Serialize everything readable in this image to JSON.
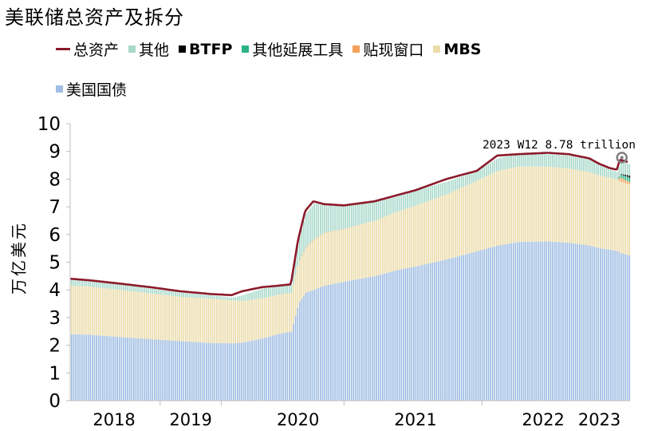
{
  "chart_data": {
    "type": "area",
    "title": "美联储总资产及拆分",
    "ylabel": "万亿美元",
    "xlabel": "",
    "ylim": [
      0,
      10
    ],
    "yticks": [
      0,
      1,
      2,
      3,
      4,
      5,
      6,
      7,
      8,
      9,
      10
    ],
    "xlim": [
      2017.82,
      2023.3
    ],
    "xtick_labels": [
      {
        "x": 2018.25,
        "label": "2018"
      },
      {
        "x": 2019.0,
        "label": "2019"
      },
      {
        "x": 2020.05,
        "label": "2020"
      },
      {
        "x": 2021.2,
        "label": "2021"
      },
      {
        "x": 2022.45,
        "label": "2022"
      },
      {
        "x": 2023.0,
        "label": "2023"
      }
    ],
    "annotation": {
      "x": 2023.22,
      "y": 8.78,
      "text": "2023 W12 8.78 trillion"
    },
    "legend": [
      {
        "name": "总资产",
        "type": "line",
        "color": "#8b1a2b"
      },
      {
        "name": "其他",
        "type": "swatch",
        "color": "#a9d9cb"
      },
      {
        "name": "BTFP",
        "type": "swatch",
        "color": "#000000"
      },
      {
        "name": "其他延展工具",
        "type": "swatch",
        "color": "#2bb387"
      },
      {
        "name": "贴现窗口",
        "type": "swatch",
        "color": "#f4a05a"
      },
      {
        "name": "MBS",
        "type": "swatch",
        "color": "#ebdcaa"
      },
      {
        "name": "美国国债",
        "type": "swatch",
        "color": "#9fbde3"
      }
    ],
    "x": [
      2017.83,
      2018.0,
      2018.3,
      2018.6,
      2018.9,
      2019.2,
      2019.4,
      2019.5,
      2019.7,
      2019.85,
      2019.98,
      2020.05,
      2020.12,
      2020.2,
      2020.3,
      2020.5,
      2020.8,
      2021.0,
      2021.2,
      2021.5,
      2021.8,
      2022.0,
      2022.2,
      2022.5,
      2022.7,
      2022.9,
      2023.0,
      2023.1,
      2023.17,
      2023.2,
      2023.25,
      2023.29
    ],
    "series": [
      {
        "name": "美国国债",
        "color": "#9fbde3",
        "values": [
          2.4,
          2.38,
          2.3,
          2.22,
          2.15,
          2.08,
          2.07,
          2.1,
          2.25,
          2.4,
          2.5,
          3.5,
          3.9,
          4.0,
          4.15,
          4.3,
          4.5,
          4.7,
          4.85,
          5.1,
          5.4,
          5.6,
          5.73,
          5.75,
          5.7,
          5.6,
          5.5,
          5.45,
          5.4,
          5.33,
          5.28,
          5.25
        ]
      },
      {
        "name": "MBS",
        "color": "#ebdcaa",
        "values": [
          1.75,
          1.74,
          1.7,
          1.65,
          1.6,
          1.6,
          1.55,
          1.5,
          1.45,
          1.42,
          1.4,
          1.5,
          1.6,
          1.8,
          1.9,
          1.9,
          2.0,
          2.1,
          2.2,
          2.35,
          2.55,
          2.7,
          2.72,
          2.7,
          2.68,
          2.65,
          2.62,
          2.6,
          2.58,
          2.58,
          2.57,
          2.56
        ]
      },
      {
        "name": "贴现窗口",
        "color": "#f4a05a",
        "values": [
          0,
          0,
          0,
          0,
          0,
          0,
          0,
          0,
          0,
          0,
          0,
          0.02,
          0.03,
          0.02,
          0.01,
          0.01,
          0,
          0,
          0,
          0,
          0,
          0,
          0,
          0,
          0,
          0,
          0,
          0,
          0,
          0.15,
          0.11,
          0.09
        ]
      },
      {
        "name": "其他延展工具",
        "color": "#2bb387",
        "values": [
          0,
          0,
          0,
          0,
          0,
          0,
          0,
          0,
          0,
          0,
          0,
          0,
          0,
          0,
          0,
          0,
          0,
          0,
          0,
          0,
          0,
          0,
          0,
          0,
          0,
          0,
          0,
          0,
          0,
          0.1,
          0.15,
          0.15
        ]
      },
      {
        "name": "BTFP",
        "color": "#000000",
        "values": [
          0,
          0,
          0,
          0,
          0,
          0,
          0,
          0,
          0,
          0,
          0,
          0,
          0,
          0,
          0,
          0,
          0,
          0,
          0,
          0,
          0,
          0,
          0,
          0,
          0,
          0,
          0,
          0,
          0,
          0.02,
          0.05,
          0.08
        ]
      },
      {
        "name": "其他",
        "color": "#a9d9cb",
        "values": [
          0.2,
          0.2,
          0.2,
          0.18,
          0.15,
          0.12,
          0.1,
          0.2,
          0.35,
          0.3,
          0.3,
          0.8,
          1.2,
          1.3,
          1.0,
          0.8,
          0.7,
          0.55,
          0.55,
          0.45,
          0.35,
          0.45,
          0.45,
          0.45,
          0.47,
          0.45,
          0.38,
          0.3,
          0.27,
          0.45,
          0.42,
          0.4
        ]
      },
      {
        "name": "总资产",
        "color": "#8b1a2b",
        "values": [
          4.4,
          4.35,
          4.23,
          4.1,
          3.95,
          3.85,
          3.81,
          3.95,
          4.1,
          4.15,
          4.2,
          5.8,
          6.85,
          7.2,
          7.1,
          7.05,
          7.2,
          7.4,
          7.6,
          8.0,
          8.3,
          8.85,
          8.9,
          8.95,
          8.9,
          8.75,
          8.55,
          8.4,
          8.34,
          8.7,
          8.65,
          8.6
        ]
      }
    ]
  }
}
